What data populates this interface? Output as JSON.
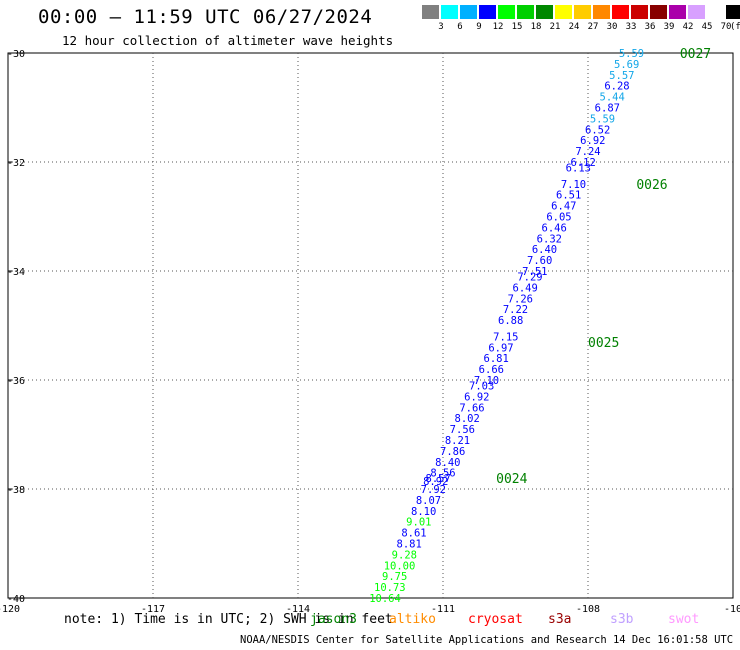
{
  "header": {
    "title": "00:00 – 11:59 UTC 06/27/2024",
    "subtitle": "12 hour collection of altimeter wave heights"
  },
  "legend": {
    "unit_label": "(ft)",
    "items": [
      {
        "label": "",
        "color": "#808080"
      },
      {
        "label": "3",
        "color": "#00ffff"
      },
      {
        "label": "6",
        "color": "#00b0ff"
      },
      {
        "label": "9",
        "color": "#0000ff"
      },
      {
        "label": "12",
        "color": "#00ff00"
      },
      {
        "label": "15",
        "color": "#00d000"
      },
      {
        "label": "18",
        "color": "#008800"
      },
      {
        "label": "21",
        "color": "#ffff00"
      },
      {
        "label": "24",
        "color": "#ffcc00"
      },
      {
        "label": "27",
        "color": "#ff8800"
      },
      {
        "label": "30",
        "color": "#ff0000"
      },
      {
        "label": "33",
        "color": "#cc0000"
      },
      {
        "label": "36",
        "color": "#880000"
      },
      {
        "label": "39",
        "color": "#aa00aa"
      },
      {
        "label": "42",
        "color": "#d8a0ff"
      },
      {
        "label": "45",
        "color": "#ffffff"
      },
      {
        "label": "70",
        "color": "#000000"
      }
    ]
  },
  "chart_data": {
    "type": "scatter",
    "x_ticks": [
      "-120",
      "-117",
      "-114",
      "-111",
      "-108",
      "-10"
    ],
    "y_ticks": [
      "-30",
      "-32",
      "-34",
      "-36",
      "-38",
      "-40"
    ],
    "xlim": [
      -120,
      -105
    ],
    "ylim": [
      -40,
      -30
    ],
    "grid": true,
    "pass_color": "#008000",
    "passes": [
      {
        "label": "0027",
        "lon": -106.1,
        "lat": -30.0
      },
      {
        "label": "0026",
        "lon": -107.0,
        "lat": -32.4
      },
      {
        "label": "0025",
        "lon": -108.0,
        "lat": -35.3
      },
      {
        "label": "0024",
        "lon": -109.9,
        "lat": -37.8
      }
    ],
    "points": [
      {
        "lon": -107.1,
        "lat": -30.0,
        "swh": "5.59"
      },
      {
        "lon": -107.2,
        "lat": -30.2,
        "swh": "5.69"
      },
      {
        "lon": -107.3,
        "lat": -30.4,
        "swh": "5.57"
      },
      {
        "lon": -107.4,
        "lat": -30.6,
        "swh": "6.28"
      },
      {
        "lon": -107.5,
        "lat": -30.8,
        "swh": "5.44"
      },
      {
        "lon": -107.6,
        "lat": -31.0,
        "swh": "6.87"
      },
      {
        "lon": -107.7,
        "lat": -31.2,
        "swh": "5.59"
      },
      {
        "lon": -107.8,
        "lat": -31.4,
        "swh": "6.52"
      },
      {
        "lon": -107.9,
        "lat": -31.6,
        "swh": "6.92"
      },
      {
        "lon": -108.0,
        "lat": -31.8,
        "swh": "7.24"
      },
      {
        "lon": -108.1,
        "lat": -32.0,
        "swh": "6.12"
      },
      {
        "lon": -108.2,
        "lat": -32.1,
        "swh": "6.13"
      },
      {
        "lon": -108.3,
        "lat": -32.4,
        "swh": "7.10"
      },
      {
        "lon": -108.4,
        "lat": -32.6,
        "swh": "6.51"
      },
      {
        "lon": -108.5,
        "lat": -32.8,
        "swh": "6.47"
      },
      {
        "lon": -108.6,
        "lat": -33.0,
        "swh": "6.05"
      },
      {
        "lon": -108.7,
        "lat": -33.2,
        "swh": "6.46"
      },
      {
        "lon": -108.8,
        "lat": -33.4,
        "swh": "6.32"
      },
      {
        "lon": -108.9,
        "lat": -33.6,
        "swh": "6.40"
      },
      {
        "lon": -109.0,
        "lat": -33.8,
        "swh": "7.60"
      },
      {
        "lon": -109.1,
        "lat": -34.0,
        "swh": "7.51"
      },
      {
        "lon": -109.2,
        "lat": -34.1,
        "swh": "7.29"
      },
      {
        "lon": -109.3,
        "lat": -34.3,
        "swh": "6.49"
      },
      {
        "lon": -109.4,
        "lat": -34.5,
        "swh": "7.26"
      },
      {
        "lon": -109.5,
        "lat": -34.7,
        "swh": "7.22"
      },
      {
        "lon": -109.6,
        "lat": -34.9,
        "swh": "6.88"
      },
      {
        "lon": -109.7,
        "lat": -35.2,
        "swh": "7.15"
      },
      {
        "lon": -109.8,
        "lat": -35.4,
        "swh": "6.97"
      },
      {
        "lon": -109.9,
        "lat": -35.6,
        "swh": "6.81"
      },
      {
        "lon": -110.0,
        "lat": -35.8,
        "swh": "6.66"
      },
      {
        "lon": -110.1,
        "lat": -36.0,
        "swh": "7.10"
      },
      {
        "lon": -110.2,
        "lat": -36.1,
        "swh": "7.03"
      },
      {
        "lon": -110.3,
        "lat": -36.3,
        "swh": "6.92"
      },
      {
        "lon": -110.4,
        "lat": -36.5,
        "swh": "7.66"
      },
      {
        "lon": -110.5,
        "lat": -36.7,
        "swh": "8.02"
      },
      {
        "lon": -110.6,
        "lat": -36.9,
        "swh": "7.56"
      },
      {
        "lon": -110.7,
        "lat": -37.1,
        "swh": "8.21"
      },
      {
        "lon": -110.8,
        "lat": -37.3,
        "swh": "7.86"
      },
      {
        "lon": -110.9,
        "lat": -37.5,
        "swh": "8.40"
      },
      {
        "lon": -111.0,
        "lat": -37.7,
        "swh": "8.56"
      },
      {
        "lon": -111.1,
        "lat": -37.8,
        "swh": "8.57"
      },
      {
        "lon": -111.15,
        "lat": -37.85,
        "swh": "8.92"
      },
      {
        "lon": -111.2,
        "lat": -38.0,
        "swh": "7.92"
      },
      {
        "lon": -111.3,
        "lat": -38.2,
        "swh": "8.07"
      },
      {
        "lon": -111.4,
        "lat": -38.4,
        "swh": "8.10"
      },
      {
        "lon": -111.5,
        "lat": -38.6,
        "swh": "9.01"
      },
      {
        "lon": -111.6,
        "lat": -38.8,
        "swh": "8.61"
      },
      {
        "lon": -111.7,
        "lat": -39.0,
        "swh": "8.81"
      },
      {
        "lon": -111.8,
        "lat": -39.2,
        "swh": "9.28"
      },
      {
        "lon": -111.9,
        "lat": -39.4,
        "swh": "10.00"
      },
      {
        "lon": -112.0,
        "lat": -39.6,
        "swh": "9.75"
      },
      {
        "lon": -112.1,
        "lat": -39.8,
        "swh": "10.73"
      },
      {
        "lon": -112.2,
        "lat": -40.0,
        "swh": "10.64"
      }
    ]
  },
  "footer": {
    "note": "note:  1) Time is in UTC; 2) SWH is in feet",
    "missions": [
      {
        "label": "jason3",
        "color": "#008000"
      },
      {
        "label": "altiko",
        "color": "#ff8c00"
      },
      {
        "label": "cryosat",
        "color": "#ff0000"
      },
      {
        "label": "s3a",
        "color": "#990000"
      },
      {
        "label": "s3b",
        "color": "#c0a0ff"
      },
      {
        "label": "swot",
        "color": "#ff99ff"
      }
    ],
    "credit": "NOAA/NESDIS Center for Satellite Applications and Research    14 Dec 16:01:58 UTC 2024"
  }
}
